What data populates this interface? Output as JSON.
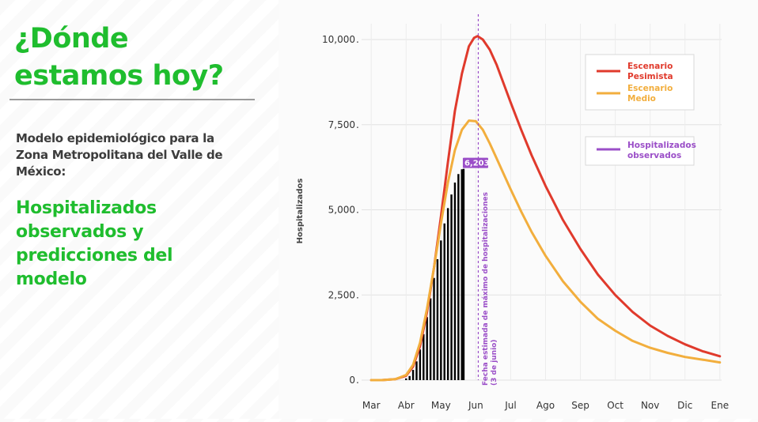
{
  "slide": {
    "title_line1": "¿Dónde",
    "title_line2": "estamos hoy?",
    "subtitle_line1": "Modelo epidemiológico para la",
    "subtitle_line2": "Zona Metropolitana del Valle de",
    "subtitle_line3": "México:",
    "highlight_line1": "Hospitalizados",
    "highlight_line2": "observados y",
    "highlight_line3": "predicciones del",
    "highlight_line4": "modelo"
  },
  "colors": {
    "title_green": "#1fbd2e",
    "pesimista": "#e03a2c",
    "medio": "#f2ae3d",
    "observados": "#9b4fc8",
    "observados_bar": "#cdb8e0"
  },
  "chart_data": {
    "type": "line",
    "ylabel": "Hospitalizados",
    "ylim": [
      0,
      10500
    ],
    "yticks": [
      {
        "value": 0,
        "label": "0"
      },
      {
        "value": 2500,
        "label": "2,500"
      },
      {
        "value": 5000,
        "label": "5,000"
      },
      {
        "value": 7500,
        "label": "7,500"
      },
      {
        "value": 10000,
        "label": "10,000"
      }
    ],
    "x_months": [
      "Mar",
      "Abr",
      "May",
      "Jun",
      "Jul",
      "Ago",
      "Sep",
      "Oct",
      "Nov",
      "Dic",
      "Ene"
    ],
    "x_range": [
      -0.05,
      10.05
    ],
    "series": [
      {
        "name": "Escenario Pesimista",
        "color": "#e03a2c",
        "x": [
          0,
          0.3,
          0.7,
          1.0,
          1.2,
          1.4,
          1.6,
          1.8,
          2.0,
          2.2,
          2.4,
          2.6,
          2.8,
          2.95,
          3.05,
          3.2,
          3.4,
          3.6,
          3.8,
          4.0,
          4.3,
          4.6,
          5.0,
          5.5,
          6.0,
          6.5,
          7.0,
          7.5,
          8.0,
          8.5,
          9.0,
          9.5,
          10.0
        ],
        "y": [
          0,
          0,
          30,
          130,
          400,
          1000,
          2000,
          3300,
          4800,
          6400,
          7900,
          9000,
          9800,
          10050,
          10100,
          10000,
          9700,
          9250,
          8700,
          8150,
          7350,
          6600,
          5700,
          4700,
          3850,
          3100,
          2500,
          2000,
          1600,
          1300,
          1050,
          850,
          700
        ]
      },
      {
        "name": "Escenario Medio",
        "color": "#f2ae3d",
        "x": [
          0,
          0.3,
          0.7,
          1.0,
          1.2,
          1.4,
          1.6,
          1.8,
          2.0,
          2.2,
          2.4,
          2.6,
          2.8,
          3.0,
          3.2,
          3.4,
          3.6,
          3.8,
          4.0,
          4.3,
          4.6,
          5.0,
          5.5,
          6.0,
          6.5,
          7.0,
          7.5,
          8.0,
          8.5,
          9.0,
          9.5,
          10.0
        ],
        "y": [
          0,
          0,
          30,
          150,
          450,
          1100,
          2100,
          3300,
          4600,
          5800,
          6750,
          7350,
          7620,
          7600,
          7350,
          6950,
          6500,
          6050,
          5600,
          4950,
          4350,
          3650,
          2900,
          2300,
          1800,
          1450,
          1150,
          950,
          800,
          680,
          600,
          520
        ]
      }
    ],
    "observed": {
      "name": "Hospitalizados observados",
      "color": "#9b4fc8",
      "x": [
        1.0,
        1.1,
        1.2,
        1.3,
        1.4,
        1.5,
        1.6,
        1.7,
        1.8,
        1.9,
        2.0,
        2.1,
        2.2,
        2.3,
        2.4,
        2.5,
        2.6,
        2.65
      ],
      "y": [
        50,
        120,
        300,
        550,
        900,
        1350,
        1850,
        2400,
        3000,
        3550,
        4100,
        4600,
        5050,
        5450,
        5800,
        6050,
        6190,
        6203
      ],
      "last_label": "6,203"
    },
    "peak_marker": {
      "x": 3.07,
      "label_line1": "Fecha estimada de máximo de hospitalizaciones",
      "label_line2": "(3 de junio)"
    },
    "legend": {
      "placement": "top-right",
      "pesimista_line1": "Escenario",
      "pesimista_line2": "Pesimista",
      "medio_line1": "Escenario",
      "medio_line2": "Medio",
      "observados_line1": "Hospitalizados",
      "observados_line2": "observados"
    },
    "grid": true
  }
}
